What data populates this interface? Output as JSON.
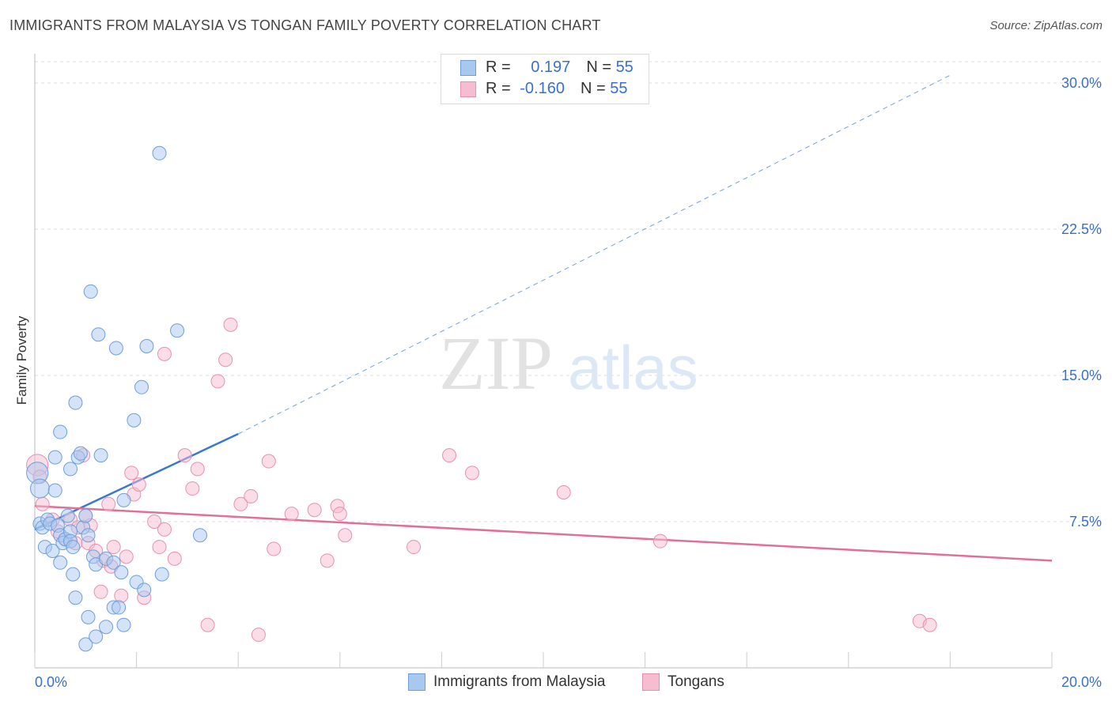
{
  "header": {
    "title": "IMMIGRANTS FROM MALAYSIA VS TONGAN FAMILY POVERTY CORRELATION CHART",
    "source": "Source: ZipAtlas.com"
  },
  "watermark": {
    "zip": "ZIP",
    "atlas": "atlas"
  },
  "colors": {
    "malaysia_fill": "#a9c8ef",
    "malaysia_stroke": "#6e9fdb",
    "malaysia_line": "#3a78d0",
    "tongan_fill": "#f6bcd0",
    "tongan_stroke": "#e691b0",
    "tongan_line": "#e0709a",
    "tick_text": "#3a70c8"
  },
  "legend": {
    "row1": {
      "r_label": "R = ",
      "r_value": "0.197",
      "n_label": "N = ",
      "n_value": "55"
    },
    "row2": {
      "r_label": "R = ",
      "r_value": "-0.160",
      "n_label": "N = ",
      "n_value": "55"
    }
  },
  "chart_data": {
    "type": "scatter",
    "title": "IMMIGRANTS FROM MALAYSIA VS TONGAN FAMILY POVERTY CORRELATION CHART",
    "xlabel": "",
    "ylabel": "Family Poverty",
    "xlim": [
      0,
      20
    ],
    "ylim": [
      0,
      31.5
    ],
    "x_tick_labels": {
      "min": "0.0%",
      "max": "20.0%"
    },
    "y_ticks": [
      {
        "value": 7.5,
        "label": "7.5%"
      },
      {
        "value": 15.0,
        "label": "15.0%"
      },
      {
        "value": 22.5,
        "label": "22.5%"
      },
      {
        "value": 30.0,
        "label": "30.0%"
      }
    ],
    "series": [
      {
        "name": "Immigrants from Malaysia",
        "r": 0.197,
        "n": 55,
        "trend": {
          "x0": 0.0,
          "y0": 7.1,
          "x1": 4.0,
          "y1": 12.0,
          "dash_to_x": 18.0,
          "dash_to_y": 30.4
        },
        "points": [
          [
            0.05,
            10.0,
            1.6
          ],
          [
            0.1,
            9.2,
            1.4
          ],
          [
            0.1,
            7.4,
            1.0
          ],
          [
            0.15,
            7.2,
            1.0
          ],
          [
            0.2,
            6.2,
            1.0
          ],
          [
            0.25,
            7.6,
            1.0
          ],
          [
            0.3,
            7.4,
            1.0
          ],
          [
            0.35,
            6.0,
            1.0
          ],
          [
            0.4,
            9.1,
            1.0
          ],
          [
            0.4,
            10.8,
            1.0
          ],
          [
            0.45,
            7.3,
            1.0
          ],
          [
            0.5,
            5.4,
            1.0
          ],
          [
            0.5,
            6.8,
            1.0
          ],
          [
            0.5,
            12.1,
            1.0
          ],
          [
            0.55,
            6.4,
            1.0
          ],
          [
            0.6,
            6.6,
            1.0
          ],
          [
            0.65,
            7.8,
            1.0
          ],
          [
            0.7,
            7.0,
            1.0
          ],
          [
            0.7,
            6.5,
            1.0
          ],
          [
            0.75,
            6.2,
            1.0
          ],
          [
            0.7,
            10.2,
            1.0
          ],
          [
            0.75,
            4.8,
            1.0
          ],
          [
            0.8,
            3.6,
            1.0
          ],
          [
            0.8,
            13.6,
            1.0
          ],
          [
            0.85,
            10.8,
            1.0
          ],
          [
            0.9,
            11.0,
            1.0
          ],
          [
            0.95,
            7.2,
            1.0
          ],
          [
            1.0,
            7.8,
            1.0
          ],
          [
            1.0,
            1.2,
            1.0
          ],
          [
            1.05,
            2.6,
            1.0
          ],
          [
            1.05,
            6.8,
            1.0
          ],
          [
            1.1,
            19.3,
            1.0
          ],
          [
            1.15,
            5.7,
            1.0
          ],
          [
            1.2,
            5.3,
            1.0
          ],
          [
            1.2,
            1.6,
            1.0
          ],
          [
            1.25,
            17.1,
            1.0
          ],
          [
            1.3,
            10.9,
            1.0
          ],
          [
            1.4,
            5.6,
            1.0
          ],
          [
            1.4,
            2.1,
            1.0
          ],
          [
            1.55,
            5.4,
            1.0
          ],
          [
            1.55,
            3.1,
            1.0
          ],
          [
            1.6,
            16.4,
            1.0
          ],
          [
            1.65,
            3.1,
            1.0
          ],
          [
            1.7,
            4.9,
            1.0
          ],
          [
            1.75,
            2.2,
            1.0
          ],
          [
            1.75,
            8.6,
            1.0
          ],
          [
            1.95,
            12.7,
            1.0
          ],
          [
            2.0,
            4.4,
            1.0
          ],
          [
            2.1,
            14.4,
            1.0
          ],
          [
            2.15,
            4.0,
            1.0
          ],
          [
            2.2,
            16.5,
            1.0
          ],
          [
            2.45,
            26.4,
            1.0
          ],
          [
            2.5,
            4.8,
            1.0
          ],
          [
            2.8,
            17.3,
            1.0
          ],
          [
            3.25,
            6.8,
            1.0
          ]
        ]
      },
      {
        "name": "Tongans",
        "r": -0.16,
        "n": 55,
        "trend": {
          "x0": 0.0,
          "y0": 8.3,
          "x1": 20.0,
          "y1": 5.5
        },
        "points": [
          [
            0.05,
            10.4,
            1.6
          ],
          [
            0.15,
            8.4,
            1.0
          ],
          [
            0.35,
            7.6,
            1.0
          ],
          [
            0.45,
            7.0,
            1.0
          ],
          [
            0.6,
            6.6,
            1.0
          ],
          [
            0.7,
            7.6,
            1.0
          ],
          [
            0.8,
            6.4,
            1.0
          ],
          [
            0.85,
            7.2,
            1.0
          ],
          [
            0.95,
            10.9,
            1.0
          ],
          [
            1.0,
            7.8,
            1.0
          ],
          [
            1.05,
            6.4,
            1.0
          ],
          [
            1.1,
            7.3,
            1.0
          ],
          [
            1.2,
            6.0,
            1.0
          ],
          [
            1.3,
            3.9,
            1.0
          ],
          [
            1.35,
            5.5,
            1.0
          ],
          [
            1.45,
            8.4,
            1.0
          ],
          [
            1.5,
            5.2,
            1.0
          ],
          [
            1.55,
            6.2,
            1.0
          ],
          [
            1.7,
            3.7,
            1.0
          ],
          [
            1.8,
            5.7,
            1.0
          ],
          [
            1.9,
            10.0,
            1.0
          ],
          [
            1.95,
            8.9,
            1.0
          ],
          [
            2.05,
            9.4,
            1.0
          ],
          [
            2.15,
            3.6,
            1.0
          ],
          [
            2.35,
            7.5,
            1.0
          ],
          [
            2.45,
            6.2,
            1.0
          ],
          [
            2.55,
            16.1,
            1.0
          ],
          [
            2.55,
            7.1,
            1.0
          ],
          [
            2.75,
            5.6,
            1.0
          ],
          [
            2.95,
            10.9,
            1.0
          ],
          [
            3.1,
            9.2,
            1.0
          ],
          [
            3.2,
            10.2,
            1.0
          ],
          [
            3.4,
            2.2,
            1.0
          ],
          [
            3.6,
            14.7,
            1.0
          ],
          [
            3.75,
            15.8,
            1.0
          ],
          [
            3.85,
            17.6,
            1.0
          ],
          [
            4.05,
            8.4,
            1.0
          ],
          [
            4.25,
            8.8,
            1.0
          ],
          [
            4.4,
            1.7,
            1.0
          ],
          [
            4.6,
            10.6,
            1.0
          ],
          [
            4.7,
            6.1,
            1.0
          ],
          [
            5.05,
            7.9,
            1.0
          ],
          [
            5.5,
            8.1,
            1.0
          ],
          [
            5.75,
            5.5,
            1.0
          ],
          [
            5.95,
            8.3,
            1.0
          ],
          [
            6.0,
            7.9,
            1.0
          ],
          [
            6.1,
            6.8,
            1.0
          ],
          [
            7.45,
            6.2,
            1.0
          ],
          [
            8.15,
            10.9,
            1.0
          ],
          [
            8.6,
            10.0,
            1.0
          ],
          [
            10.4,
            9.0,
            1.0
          ],
          [
            12.3,
            6.5,
            1.0
          ],
          [
            17.4,
            2.4,
            1.0
          ],
          [
            17.6,
            2.2,
            1.0
          ],
          [
            0.1,
            9.8,
            1.0
          ]
        ]
      }
    ]
  }
}
